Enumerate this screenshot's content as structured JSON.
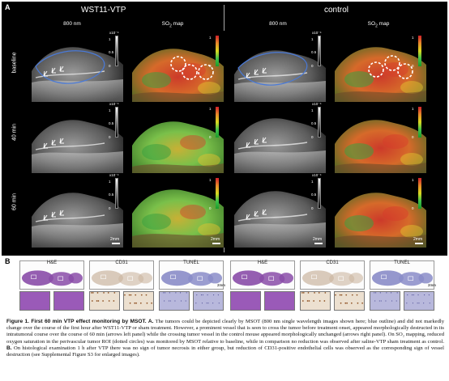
{
  "figure": {
    "panel_a_letter": "A",
    "panel_b_letter": "B",
    "groups": [
      {
        "title": "WST11-VTP"
      },
      {
        "title": "control"
      }
    ],
    "columns": {
      "nm": "800 nm",
      "so2": "SO",
      "so2_sub": "2",
      "so2_suffix": " map"
    },
    "rows": [
      "baseline",
      "40 min",
      "60 min"
    ],
    "colorbar_gray": {
      "max": "1",
      "exp": "x10⁻⁴",
      "mid": "0.5",
      "min": "0"
    },
    "colorbar_so2": {
      "max": "1",
      "min": "0"
    },
    "scale_label": "2mm",
    "histology": {
      "stains": [
        "H&E",
        "CD31",
        "TUNEL"
      ],
      "scale_label": "2mm"
    },
    "colors": {
      "tumor_outline": "#4a7ad8",
      "circle": "#ffffff",
      "he": "#8a4ca8",
      "cd31": "#cbb5a0",
      "tunel": "#8a8cc8"
    }
  },
  "caption": {
    "heading": "Figure 1. First 60 min VTP effect monitoring by MSOT.",
    "a_label": "A.",
    "a_text": " The tumors could be depicted clearly by MSOT (800 nm single wavelength images shown here; blue outline) and did not markedly change over the course of the first hour after WST11-VTP or sham treatment. However, a prominent vessel that is seen to cross the tumor before treatment onset, appeared morphologically destructed in its intratumoral course over the course of 60 min (arrows left panel) while the crossing tumor vessel in the control mouse appeared morphologically unchanged (arrows right panel). On SO₂ mapping, reduced oxygen saturation in the perivascular tumor ROI (dotted circles) was monitored by MSOT relative to baseline, while in comparison no reduction was observed after saline-VTP sham treatment as control.",
    "b_label": "B.",
    "b_text": " On histological examination 1 h after VTP there was no sign of tumor necrosis in either group, but reduction of CD31-positive endothelial cells was observed as the corresponding sign of vessel destruction (see Supplemental Figure S3 for enlarged images)."
  }
}
